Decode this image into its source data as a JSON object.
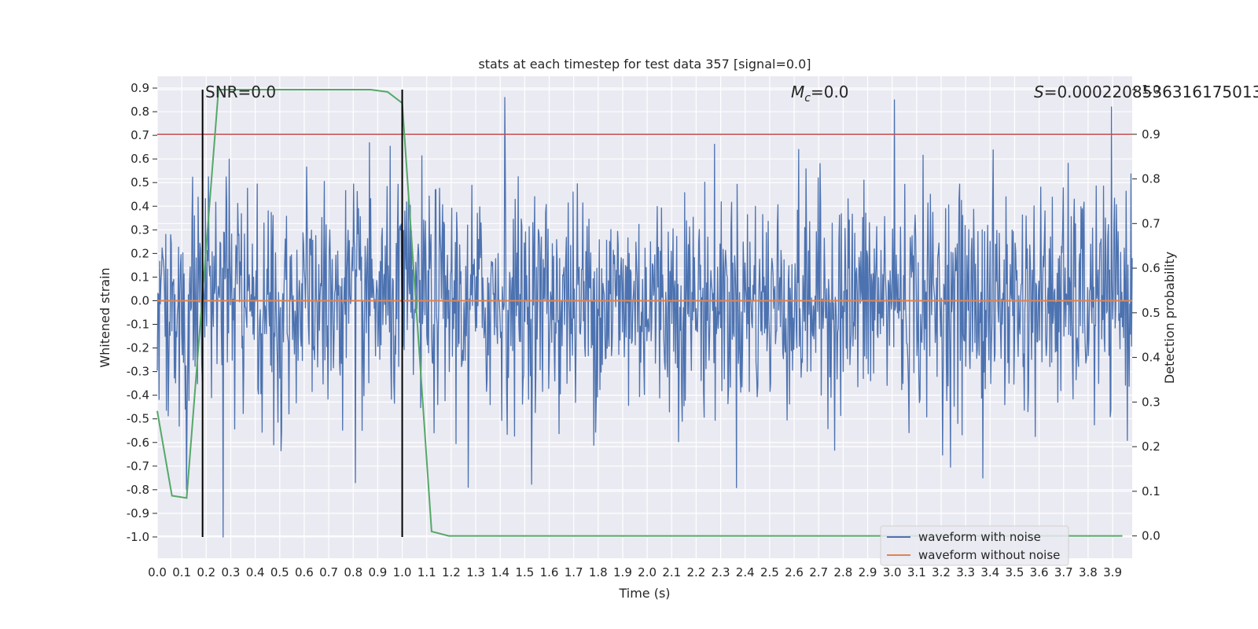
{
  "chart_data": {
    "type": "line",
    "title": "stats at each timestep for test data 357 [signal=0.0]",
    "xlabel": "Time (s)",
    "ylabel": "Whitened strain",
    "y2label": "Detection probability",
    "xlim": [
      0.0,
      3.98
    ],
    "ylim": [
      -1.09,
      0.95
    ],
    "y2lim": [
      -0.05,
      1.03
    ],
    "x_ticks": [
      "0.0",
      "0.1",
      "0.2",
      "0.3",
      "0.4",
      "0.5",
      "0.6",
      "0.7",
      "0.8",
      "0.9",
      "1.0",
      "1.1",
      "1.2",
      "1.3",
      "1.4",
      "1.5",
      "1.6",
      "1.7",
      "1.8",
      "1.9",
      "2.0",
      "2.1",
      "2.2",
      "2.3",
      "2.4",
      "2.5",
      "2.6",
      "2.7",
      "2.8",
      "2.9",
      "3.0",
      "3.1",
      "3.2",
      "3.3",
      "3.4",
      "3.5",
      "3.6",
      "3.7",
      "3.8",
      "3.9"
    ],
    "y_ticks": [
      "0.9",
      "0.8",
      "0.7",
      "0.6",
      "0.5",
      "0.4",
      "0.3",
      "0.2",
      "0.1",
      "0.0",
      "-0.1",
      "-0.2",
      "-0.3",
      "-0.4",
      "-0.5",
      "-0.6",
      "-0.7",
      "-0.8",
      "-0.9",
      "-1.0"
    ],
    "y2_ticks": [
      "1.0",
      "0.9",
      "0.8",
      "0.7",
      "0.6",
      "0.5",
      "0.4",
      "0.3",
      "0.2",
      "0.1",
      "0.0"
    ],
    "annotations": {
      "snr": "SNR=0.0",
      "mc_symbol": "M",
      "mc_sub": "c",
      "mc_value": "=0.0",
      "s_symbol": "S",
      "s_value": "=0.0002208536316175013"
    },
    "threshold": {
      "value": 0.9,
      "axis": "right",
      "color": "#c44e52"
    },
    "vertical_markers": [
      0.185,
      1.0
    ],
    "series": [
      {
        "name": "waveform with noise",
        "color": "#4c72b0",
        "axis": "left",
        "kind": "noise",
        "samples": 1600,
        "amplitude_typical": 0.3,
        "peaks": [
          {
            "x": 1.42,
            "y": 0.86
          },
          {
            "x": 3.01,
            "y": 0.85
          },
          {
            "x": 0.27,
            "y": -1.0
          },
          {
            "x": 0.12,
            "y": -0.8
          },
          {
            "x": 3.37,
            "y": -0.75
          },
          {
            "x": 1.27,
            "y": -0.79
          },
          {
            "x": 0.81,
            "y": -0.77
          }
        ]
      },
      {
        "name": "waveform without noise",
        "color": "#dd8452",
        "axis": "left",
        "x": [
          0.0,
          3.98
        ],
        "y": [
          0.0,
          0.0
        ]
      },
      {
        "name": "detection probability",
        "color": "#55a868",
        "axis": "right",
        "x": [
          0.0,
          0.06,
          0.12,
          0.25,
          0.87,
          0.94,
          1.0,
          1.12,
          1.19,
          3.94
        ],
        "y": [
          0.28,
          0.09,
          0.085,
          1.0,
          1.0,
          0.995,
          0.97,
          0.01,
          0.0,
          0.0
        ]
      }
    ],
    "legend": {
      "position": "lower-right",
      "entries": [
        {
          "label": "waveform with noise",
          "color": "#4c72b0"
        },
        {
          "label": "waveform without noise",
          "color": "#dd8452"
        }
      ]
    }
  }
}
